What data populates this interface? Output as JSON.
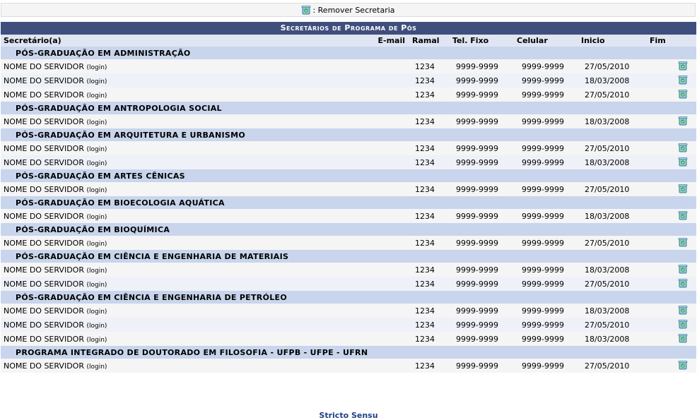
{
  "legend": {
    "icon": "trash-icon",
    "label": ": Remover Secretaria"
  },
  "table": {
    "caption": "Secretários de Programa de Pós",
    "headers": {
      "name": "Secretário(a)",
      "email": "E-mail",
      "ramal": "Ramal",
      "tel": "Tel. Fixo",
      "cel": "Celular",
      "inicio": "Inicio",
      "fim": "Fim"
    },
    "groups": [
      {
        "title": "PÓS-GRADUAÇÃO EM ADMINISTRAÇÃO",
        "rows": [
          {
            "name": "NOME DO SERVIDOR",
            "login": "(login)",
            "ramal": "1234",
            "tel": "9999-9999",
            "cel": "9999-9999",
            "inicio": "27/05/2010"
          },
          {
            "name": "NOME DO SERVIDOR",
            "login": "(login)",
            "ramal": "1234",
            "tel": "9999-9999",
            "cel": "9999-9999",
            "inicio": "18/03/2008"
          },
          {
            "name": "NOME DO SERVIDOR",
            "login": "(login)",
            "ramal": "1234",
            "tel": "9999-9999",
            "cel": "9999-9999",
            "inicio": "27/05/2010"
          }
        ]
      },
      {
        "title": "PÓS-GRADUAÇÃO EM ANTROPOLOGIA SOCIAL",
        "rows": [
          {
            "name": "NOME DO SERVIDOR",
            "login": "(login)",
            "ramal": "1234",
            "tel": "9999-9999",
            "cel": "9999-9999",
            "inicio": "18/03/2008"
          }
        ]
      },
      {
        "title": "PÓS-GRADUAÇÃO EM ARQUITETURA E URBANISMO",
        "rows": [
          {
            "name": "NOME DO SERVIDOR",
            "login": "(login)",
            "ramal": "1234",
            "tel": "9999-9999",
            "cel": "9999-9999",
            "inicio": "27/05/2010"
          },
          {
            "name": "NOME DO SERVIDOR",
            "login": "(login)",
            "ramal": "1234",
            "tel": "9999-9999",
            "cel": "9999-9999",
            "inicio": "18/03/2008"
          }
        ]
      },
      {
        "title": "PÓS-GRADUAÇÃO EM ARTES CÊNICAS",
        "rows": [
          {
            "name": "NOME DO SERVIDOR",
            "login": "(login)",
            "ramal": "1234",
            "tel": "9999-9999",
            "cel": "9999-9999",
            "inicio": "27/05/2010"
          }
        ]
      },
      {
        "title": "PÓS-GRADUAÇÃO EM BIOECOLOGIA AQUÁTICA",
        "rows": [
          {
            "name": "NOME DO SERVIDOR",
            "login": "(login)",
            "ramal": "1234",
            "tel": "9999-9999",
            "cel": "9999-9999",
            "inicio": "18/03/2008"
          }
        ]
      },
      {
        "title": "PÓS-GRADUAÇÃO EM BIOQUÍMICA",
        "rows": [
          {
            "name": "NOME DO SERVIDOR",
            "login": "(login)",
            "ramal": "1234",
            "tel": "9999-9999",
            "cel": "9999-9999",
            "inicio": "27/05/2010"
          }
        ]
      },
      {
        "title": "PÓS-GRADUAÇÃO EM CIÊNCIA E ENGENHARIA DE MATERIAIS",
        "rows": [
          {
            "name": "NOME DO SERVIDOR",
            "login": "(login)",
            "ramal": "1234",
            "tel": "9999-9999",
            "cel": "9999-9999",
            "inicio": "18/03/2008"
          },
          {
            "name": "NOME DO SERVIDOR",
            "login": "(login)",
            "ramal": "1234",
            "tel": "9999-9999",
            "cel": "9999-9999",
            "inicio": "27/05/2010"
          }
        ]
      },
      {
        "title": "PÓS-GRADUAÇÃO EM CIÊNCIA E ENGENHARIA DE PETRÓLEO",
        "rows": [
          {
            "name": "NOME DO SERVIDOR",
            "login": "(login)",
            "ramal": "1234",
            "tel": "9999-9999",
            "cel": "9999-9999",
            "inicio": "18/03/2008"
          },
          {
            "name": "NOME DO SERVIDOR",
            "login": "(login)",
            "ramal": "1234",
            "tel": "9999-9999",
            "cel": "9999-9999",
            "inicio": "27/05/2010"
          },
          {
            "name": "NOME DO SERVIDOR",
            "login": "(login)",
            "ramal": "1234",
            "tel": "9999-9999",
            "cel": "9999-9999",
            "inicio": "18/03/2008"
          }
        ]
      },
      {
        "title": "PROGRAMA INTEGRADO DE DOUTORADO EM FILOSOFIA - UFPB - UFPE - UFRN",
        "rows": [
          {
            "name": "NOME DO SERVIDOR",
            "login": "(login)",
            "ramal": "1234",
            "tel": "9999-9999",
            "cel": "9999-9999",
            "inicio": "27/05/2010"
          }
        ]
      }
    ]
  },
  "footer": {
    "link": "Stricto Sensu"
  },
  "colors": {
    "caption_bg": "#3f4e7c",
    "group_bg": "#c8d5ec",
    "header_bg": "#dfe5f2",
    "link": "#1f3f8a"
  }
}
